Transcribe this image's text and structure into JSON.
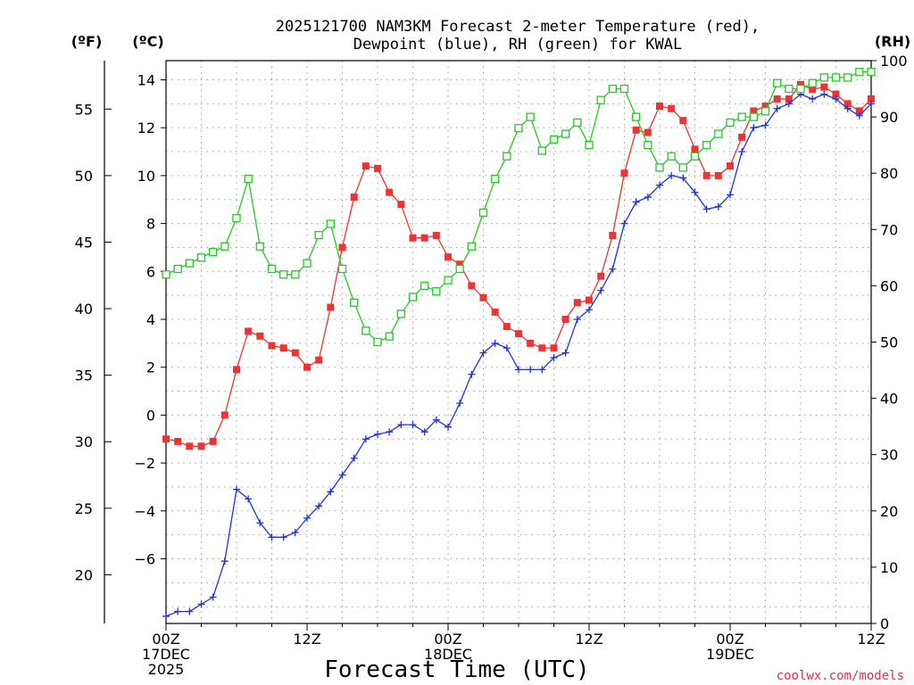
{
  "colors": {
    "temperature": "#ee3333",
    "dewpoint": "#2233dd",
    "rh": "#22cc22",
    "credit": "#e0304a"
  },
  "chart_data": {
    "type": "line",
    "title": [
      "2025121700 NAM3KM Forecast 2-meter Temperature (red),",
      "Dewpoint (blue), RH (green) for KWAL"
    ],
    "xlabel": "Forecast Time (UTC)",
    "credit": "coolwx.com/models",
    "units": {
      "fahrenheit": "(ºF)",
      "celsius": "(ºC)",
      "rh": "(RH)"
    },
    "x_hours_range": [
      0,
      60
    ],
    "x_ticks": [
      {
        "hour": 0,
        "lines": [
          "00Z",
          "17DEC",
          "2025"
        ]
      },
      {
        "hour": 12,
        "lines": [
          "12Z"
        ]
      },
      {
        "hour": 24,
        "lines": [
          "00Z",
          "18DEC"
        ]
      },
      {
        "hour": 36,
        "lines": [
          "12Z"
        ]
      },
      {
        "hour": 48,
        "lines": [
          "00Z",
          "19DEC"
        ]
      },
      {
        "hour": 60,
        "lines": [
          "12Z"
        ]
      }
    ],
    "ylim_c": [
      -8.7,
      14.8
    ],
    "yticks_c": [
      -6,
      -4,
      -2,
      0,
      2,
      4,
      6,
      8,
      10,
      12,
      14
    ],
    "yticks_f": [
      20,
      25,
      30,
      35,
      40,
      45,
      50,
      55
    ],
    "ylim_rh": [
      0,
      100
    ],
    "yticks_rh": [
      0,
      10,
      20,
      30,
      40,
      50,
      60,
      70,
      80,
      90,
      100
    ],
    "series": [
      {
        "name": "Temperature",
        "unit": "C",
        "marker": "square-filled",
        "values": [
          -1.0,
          -1.1,
          -1.3,
          -1.3,
          -1.1,
          0.0,
          1.9,
          3.5,
          3.3,
          2.9,
          2.8,
          2.6,
          2.0,
          2.3,
          4.5,
          7.0,
          9.1,
          10.4,
          10.3,
          9.3,
          8.8,
          7.4,
          7.4,
          7.5,
          6.6,
          6.3,
          5.4,
          4.9,
          4.3,
          3.7,
          3.4,
          3.0,
          2.8,
          2.8,
          4.0,
          4.7,
          4.8,
          5.8,
          7.5,
          10.1,
          11.9,
          11.8,
          12.9,
          12.8,
          12.3,
          11.1,
          10.0,
          10.0,
          10.4,
          11.6,
          12.7,
          12.9,
          13.2,
          13.2,
          13.8,
          13.6,
          13.7,
          13.4,
          13.0,
          12.7,
          13.2
        ]
      },
      {
        "name": "Dewpoint",
        "unit": "C",
        "marker": "plus",
        "values": [
          -8.4,
          -8.2,
          -8.2,
          -7.9,
          -7.6,
          -6.1,
          -3.1,
          -3.5,
          -4.5,
          -5.1,
          -5.1,
          -4.9,
          -4.3,
          -3.8,
          -3.2,
          -2.5,
          -1.8,
          -1.0,
          -0.8,
          -0.7,
          -0.4,
          -0.4,
          -0.7,
          -0.2,
          -0.5,
          0.5,
          1.7,
          2.6,
          3.0,
          2.8,
          1.9,
          1.9,
          1.9,
          2.4,
          2.6,
          4.0,
          4.4,
          5.2,
          6.1,
          8.0,
          8.9,
          9.1,
          9.6,
          10.0,
          9.9,
          9.3,
          8.6,
          8.7,
          9.2,
          11.0,
          12.0,
          12.1,
          12.8,
          13.0,
          13.4,
          13.2,
          13.4,
          13.2,
          12.8,
          12.5,
          13.0
        ]
      },
      {
        "name": "RH",
        "unit": "%",
        "marker": "square-open",
        "values": [
          62,
          63,
          64,
          65,
          66,
          67,
          72,
          79,
          67,
          63,
          62,
          62,
          64,
          69,
          71,
          63,
          57,
          52,
          50,
          51,
          55,
          58,
          60,
          59,
          61,
          63,
          67,
          73,
          79,
          83,
          88,
          90,
          84,
          86,
          87,
          89,
          85,
          93,
          95,
          95,
          90,
          85,
          81,
          83,
          81,
          83,
          85,
          87,
          89,
          90,
          90,
          91,
          96,
          95,
          95,
          96,
          97,
          97,
          97,
          98,
          98
        ]
      }
    ]
  }
}
